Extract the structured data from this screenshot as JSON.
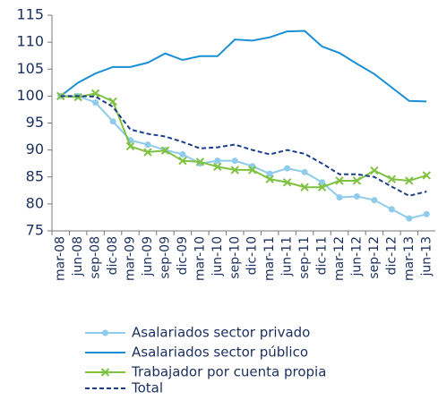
{
  "chart_data": {
    "type": "line",
    "categories": [
      "mar-08",
      "jun-08",
      "sep-08",
      "dic-08",
      "mar-09",
      "jun-09",
      "sep-09",
      "dic-09",
      "mar-10",
      "jun-10",
      "sep-10",
      "dic-10",
      "mar-11",
      "jun-11",
      "sep-11",
      "dic-11",
      "mar-12",
      "jun-12",
      "sep-12",
      "dic-12",
      "mar-13",
      "jun-13"
    ],
    "series": [
      {
        "name": "Asalariados sector privado",
        "color": "#8fcbea",
        "marker": "circle",
        "line_style": "solid",
        "values": [
          100,
          100,
          98.8,
          95.3,
          91.8,
          91,
          90,
          89.2,
          87.5,
          88,
          88,
          87,
          85.6,
          86.6,
          85.9,
          84,
          81.2,
          81.4,
          80.7,
          79,
          77.3,
          78.1
        ]
      },
      {
        "name": "Asalariados sector público",
        "color": "#1a8fd4",
        "marker": "none",
        "line_style": "solid",
        "values": [
          100,
          102.5,
          104.2,
          105.4,
          105.4,
          106.2,
          107.9,
          106.7,
          107.4,
          107.4,
          110.5,
          110.3,
          110.9,
          112,
          112.1,
          109.2,
          108,
          106,
          104.1,
          101.6,
          99.1,
          99.0
        ]
      },
      {
        "name": "Trabajador por cuenta propia",
        "color": "#7fc241",
        "marker": "x",
        "line_style": "solid",
        "values": [
          100,
          99.8,
          100.5,
          99,
          90.7,
          89.6,
          89.9,
          88,
          87.8,
          86.9,
          86.3,
          86.3,
          84.6,
          84,
          83.1,
          83.1,
          84.3,
          84.3,
          86.2,
          84.6,
          84.3,
          85.3
        ]
      },
      {
        "name": "Total",
        "color": "#1b3f8b",
        "marker": "none",
        "line_style": "dashed",
        "values": [
          100,
          100,
          99.9,
          98,
          93.8,
          93,
          92.5,
          91.5,
          90.3,
          90.5,
          91,
          90,
          89.2,
          90,
          89.3,
          87.5,
          85.5,
          85.5,
          85,
          83.2,
          81.5,
          82.3
        ]
      }
    ],
    "ylim": [
      75,
      115
    ],
    "yticks": [
      75,
      80,
      85,
      90,
      95,
      100,
      105,
      110,
      115
    ],
    "grid": false,
    "legend": "bottom"
  }
}
